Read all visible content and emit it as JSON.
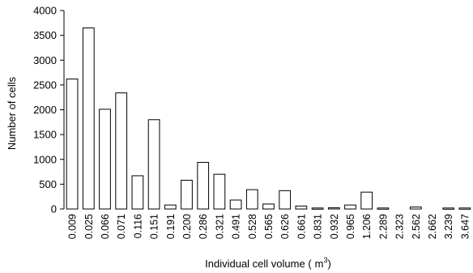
{
  "chart_data": {
    "type": "bar",
    "title": "",
    "xlabel": "Individual cell volume (",
    "xlabel_unit": "m",
    "xlabel_sup": "3",
    "xlabel_close": ")",
    "ylabel": "Number of cells",
    "ylim": [
      0,
      4000
    ],
    "yticks": [
      0,
      500,
      1000,
      1500,
      2000,
      2500,
      3000,
      3500,
      4000
    ],
    "categories": [
      "0.009",
      "0.025",
      "0.066",
      "0.071",
      "0.116",
      "0.151",
      "0.191",
      "0.200",
      "0.286",
      "0.321",
      "0.491",
      "0.528",
      "0.565",
      "0.626",
      "0.661",
      "0.831",
      "0.932",
      "0.965",
      "1.206",
      "2.289",
      "2.323",
      "2.562",
      "2.662",
      "3.239",
      "3.647"
    ],
    "values": [
      2620,
      3650,
      2010,
      2340,
      670,
      1800,
      80,
      580,
      940,
      700,
      180,
      390,
      100,
      370,
      60,
      20,
      25,
      80,
      340,
      20,
      0,
      40,
      0,
      20,
      20
    ],
    "grid": false,
    "legend": "none"
  },
  "colors": {
    "bar_fill": "#ffffff",
    "bar_stroke": "#000000"
  }
}
